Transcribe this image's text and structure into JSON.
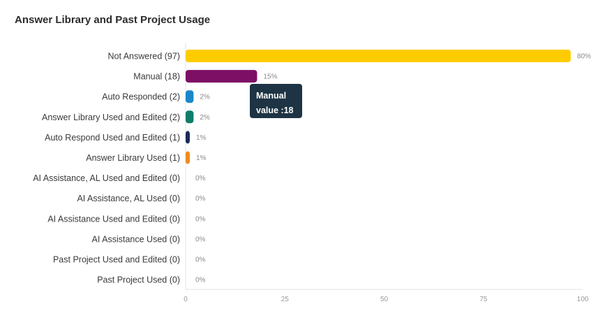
{
  "title": "Answer Library and Past Project Usage",
  "chart_data": {
    "type": "bar",
    "orientation": "horizontal",
    "title": "Answer Library and Past Project Usage",
    "categories": [
      "Not Answered (97)",
      "Manual (18)",
      "Auto Responded (2)",
      "Answer Library Used and Edited (2)",
      "Auto Respond Used and Edited (1)",
      "Answer Library Used (1)",
      "AI Assistance, AL Used and Edited (0)",
      "AI Assistance, AL Used (0)",
      "AI Assistance Used and Edited (0)",
      "AI Assistance Used (0)",
      "Past Project Used and Edited (0)",
      "Past Project Used (0)"
    ],
    "values": [
      97,
      18,
      2,
      2,
      1,
      1,
      0,
      0,
      0,
      0,
      0,
      0
    ],
    "percent_labels": [
      "80%",
      "15%",
      "2%",
      "2%",
      "1%",
      "1%",
      "0%",
      "0%",
      "0%",
      "0%",
      "0%",
      "0%"
    ],
    "colors": [
      "#ffcc00",
      "#7d0f65",
      "#1b87c9",
      "#0f7d6b",
      "#1b2a57",
      "#ee8a1a",
      "#cccccc",
      "#cccccc",
      "#cccccc",
      "#cccccc",
      "#cccccc",
      "#cccccc"
    ],
    "xlim": [
      0,
      100
    ],
    "xticks": [
      "0",
      "25",
      "50",
      "75",
      "100"
    ],
    "grid": false,
    "tooltip": {
      "title": "Manual",
      "value_label": "value : ",
      "value": "18"
    }
  }
}
